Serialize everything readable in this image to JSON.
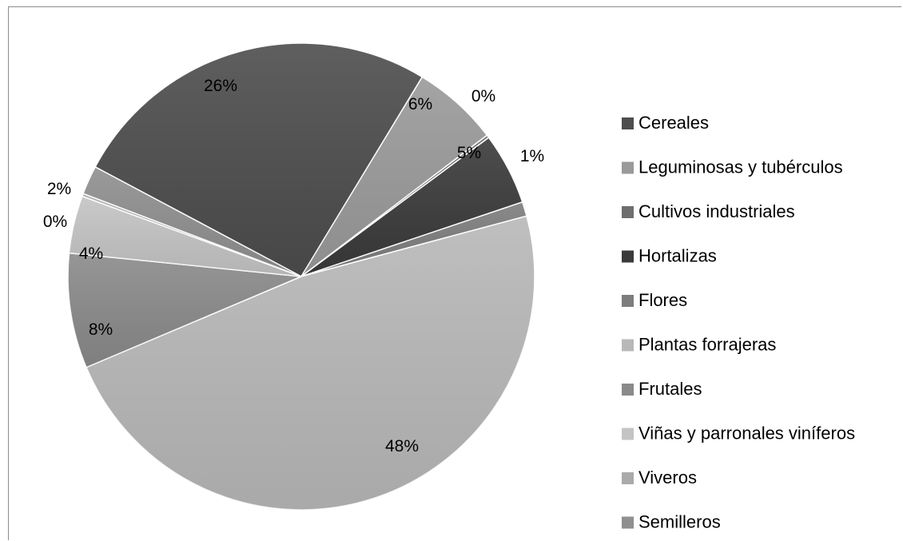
{
  "chart_data": {
    "type": "pie",
    "slices": [
      {
        "label": "Cereales",
        "value": 26,
        "display": "26%",
        "color": "#4d4d4d"
      },
      {
        "label": "Leguminosas y tubérculos",
        "value": 6,
        "display": "6%",
        "color": "#9a9a9a"
      },
      {
        "label": "Cultivos industriales",
        "value": 0.2,
        "display": "0%",
        "color": "#6e6e6e"
      },
      {
        "label": "Hortalizas",
        "value": 5,
        "display": "5%",
        "color": "#3a3a3a"
      },
      {
        "label": "Flores",
        "value": 1,
        "display": "1%",
        "color": "#7d7d7d"
      },
      {
        "label": "Plantas forrajeras",
        "value": 48,
        "display": "48%",
        "color": "#b8b8b8"
      },
      {
        "label": "Frutales",
        "value": 8,
        "display": "8%",
        "color": "#8a8a8a"
      },
      {
        "label": "Viñas y parronales viníferos",
        "value": 4,
        "display": "4%",
        "color": "#c4c4c4"
      },
      {
        "label": "Viveros",
        "value": 0.2,
        "display": "0%",
        "color": "#aaaaaa"
      },
      {
        "label": "Semilleros",
        "value": 2,
        "display": "2%",
        "color": "#8f8f8f"
      }
    ],
    "legend_position": "right"
  }
}
